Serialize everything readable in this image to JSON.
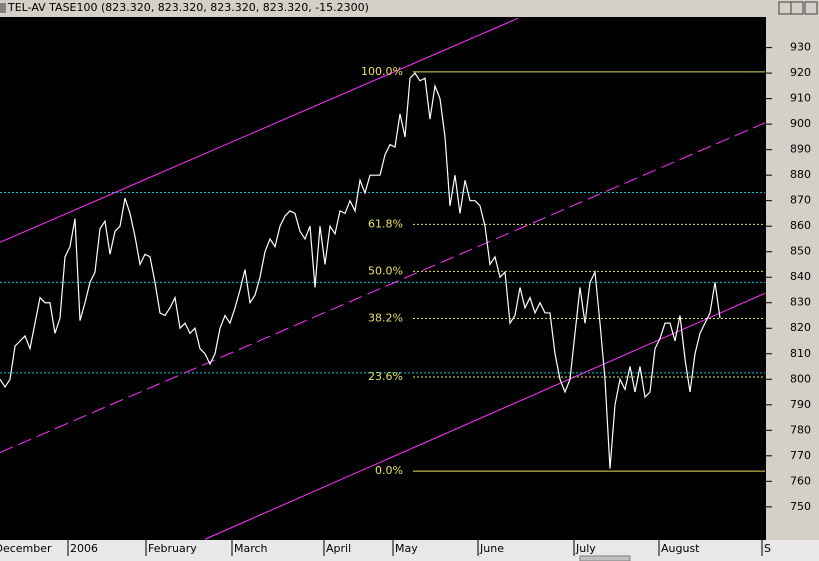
{
  "chart_data": {
    "type": "line",
    "title": "TEL-AV TASE100 (823.320, 823.320, 823.320, 823.320, -15.2300)",
    "x": [
      0,
      1,
      2,
      3,
      4,
      5,
      6,
      7,
      8,
      9,
      10,
      11,
      12,
      13,
      14,
      15,
      16,
      17,
      18,
      19,
      20,
      21,
      22,
      23,
      24,
      25,
      26,
      27,
      28,
      29,
      30,
      31,
      32,
      33,
      34,
      35,
      36,
      37,
      38,
      39,
      40,
      41,
      42,
      43,
      44,
      45,
      46,
      47,
      48,
      49,
      50,
      51,
      52,
      53,
      54,
      55,
      56,
      57,
      58,
      59,
      60,
      61,
      62,
      63,
      64,
      65,
      66,
      67,
      68,
      69,
      70,
      71,
      72,
      73,
      74,
      75,
      76,
      77,
      78,
      79,
      80,
      81,
      82,
      83,
      84,
      85,
      86,
      87,
      88,
      89,
      90,
      91,
      92,
      93,
      94,
      95,
      96,
      97,
      98,
      99,
      100,
      101,
      102,
      103,
      104,
      105,
      106,
      107,
      108,
      109,
      110,
      111,
      112,
      113,
      114,
      115,
      116,
      117,
      118,
      119,
      120,
      121,
      122,
      123,
      124,
      125,
      126,
      127,
      128,
      129,
      130,
      131,
      132,
      133,
      134,
      135,
      136,
      137,
      138,
      139,
      140,
      141,
      142,
      143,
      144
    ],
    "series": [
      {
        "color": "#ffffff",
        "values": [
          800,
          797,
          800,
          813,
          815,
          817,
          812,
          822,
          832,
          830,
          830,
          818,
          824,
          848,
          852,
          863,
          823,
          830,
          838,
          842,
          859,
          862,
          849,
          858,
          860,
          871,
          865,
          856,
          845,
          849,
          848,
          838,
          826,
          825,
          828,
          832,
          820,
          822,
          818,
          820,
          812,
          810,
          806,
          810,
          820,
          825,
          822,
          828,
          835,
          843,
          830,
          833,
          840,
          850,
          855,
          852,
          860,
          864,
          866,
          865,
          858,
          855,
          860,
          836,
          860,
          845,
          860,
          857,
          866,
          865,
          870,
          866,
          878,
          873,
          880,
          880,
          880,
          888,
          892,
          891,
          904,
          895,
          918,
          920,
          917,
          918,
          902,
          915,
          910,
          895,
          868,
          880,
          865,
          878,
          870,
          870,
          868,
          860,
          845,
          848,
          840,
          842,
          822,
          825,
          836,
          828,
          832,
          826,
          830,
          826,
          826,
          810,
          800,
          795,
          800,
          818,
          836,
          822,
          838,
          842,
          822,
          800,
          765,
          790,
          800,
          796,
          805,
          795,
          805,
          793,
          795,
          812,
          816,
          822,
          822,
          815,
          825,
          808,
          795,
          810,
          818,
          822,
          826,
          838,
          824
        ]
      }
    ],
    "xlim": [
      0,
      153
    ],
    "ylim": [
      737,
      942
    ],
    "xticks": [
      {
        "value": -1.5,
        "label": "December"
      },
      {
        "value": 13.6,
        "label": "2006"
      },
      {
        "value": 29.2,
        "label": "February"
      },
      {
        "value": 46.4,
        "label": "March"
      },
      {
        "value": 64.8,
        "label": "April"
      },
      {
        "value": 78.6,
        "label": "May"
      },
      {
        "value": 95.6,
        "label": "June"
      },
      {
        "value": 114.8,
        "label": "July"
      },
      {
        "value": 131.8,
        "label": "August"
      },
      {
        "value": 152.4,
        "label": "S"
      }
    ],
    "yticks": [
      750,
      760,
      770,
      780,
      790,
      800,
      810,
      820,
      830,
      840,
      850,
      860,
      870,
      880,
      890,
      900,
      910,
      920,
      930
    ],
    "fib_color": "#e8e060",
    "fib_levels": [
      {
        "value": 920.5,
        "label": "100.0%"
      },
      {
        "value": 860.7,
        "label": "61.8%"
      },
      {
        "value": 842.3,
        "label": "50.0%"
      },
      {
        "value": 823.8,
        "label": "38.2%"
      },
      {
        "value": 800.9,
        "label": "23.6%"
      },
      {
        "value": 764,
        "label": "0.0%"
      }
    ],
    "horizontal_lines": {
      "color": "#00c8d8",
      "values": [
        873.2,
        838,
        802.5
      ]
    },
    "trendlines": [
      {
        "color": "#ff33ff",
        "dashed": false,
        "x": [
          0,
          103.6
        ],
        "y": [
          853.7,
          941.5
        ]
      },
      {
        "color": "#ff33ff",
        "dashed": true,
        "x": [
          0,
          153
        ],
        "y": [
          771.3,
          900.5
        ]
      },
      {
        "color": "#ff33ff",
        "dashed": false,
        "x": [
          41,
          153
        ],
        "y": [
          737.3,
          833.7
        ]
      }
    ]
  }
}
